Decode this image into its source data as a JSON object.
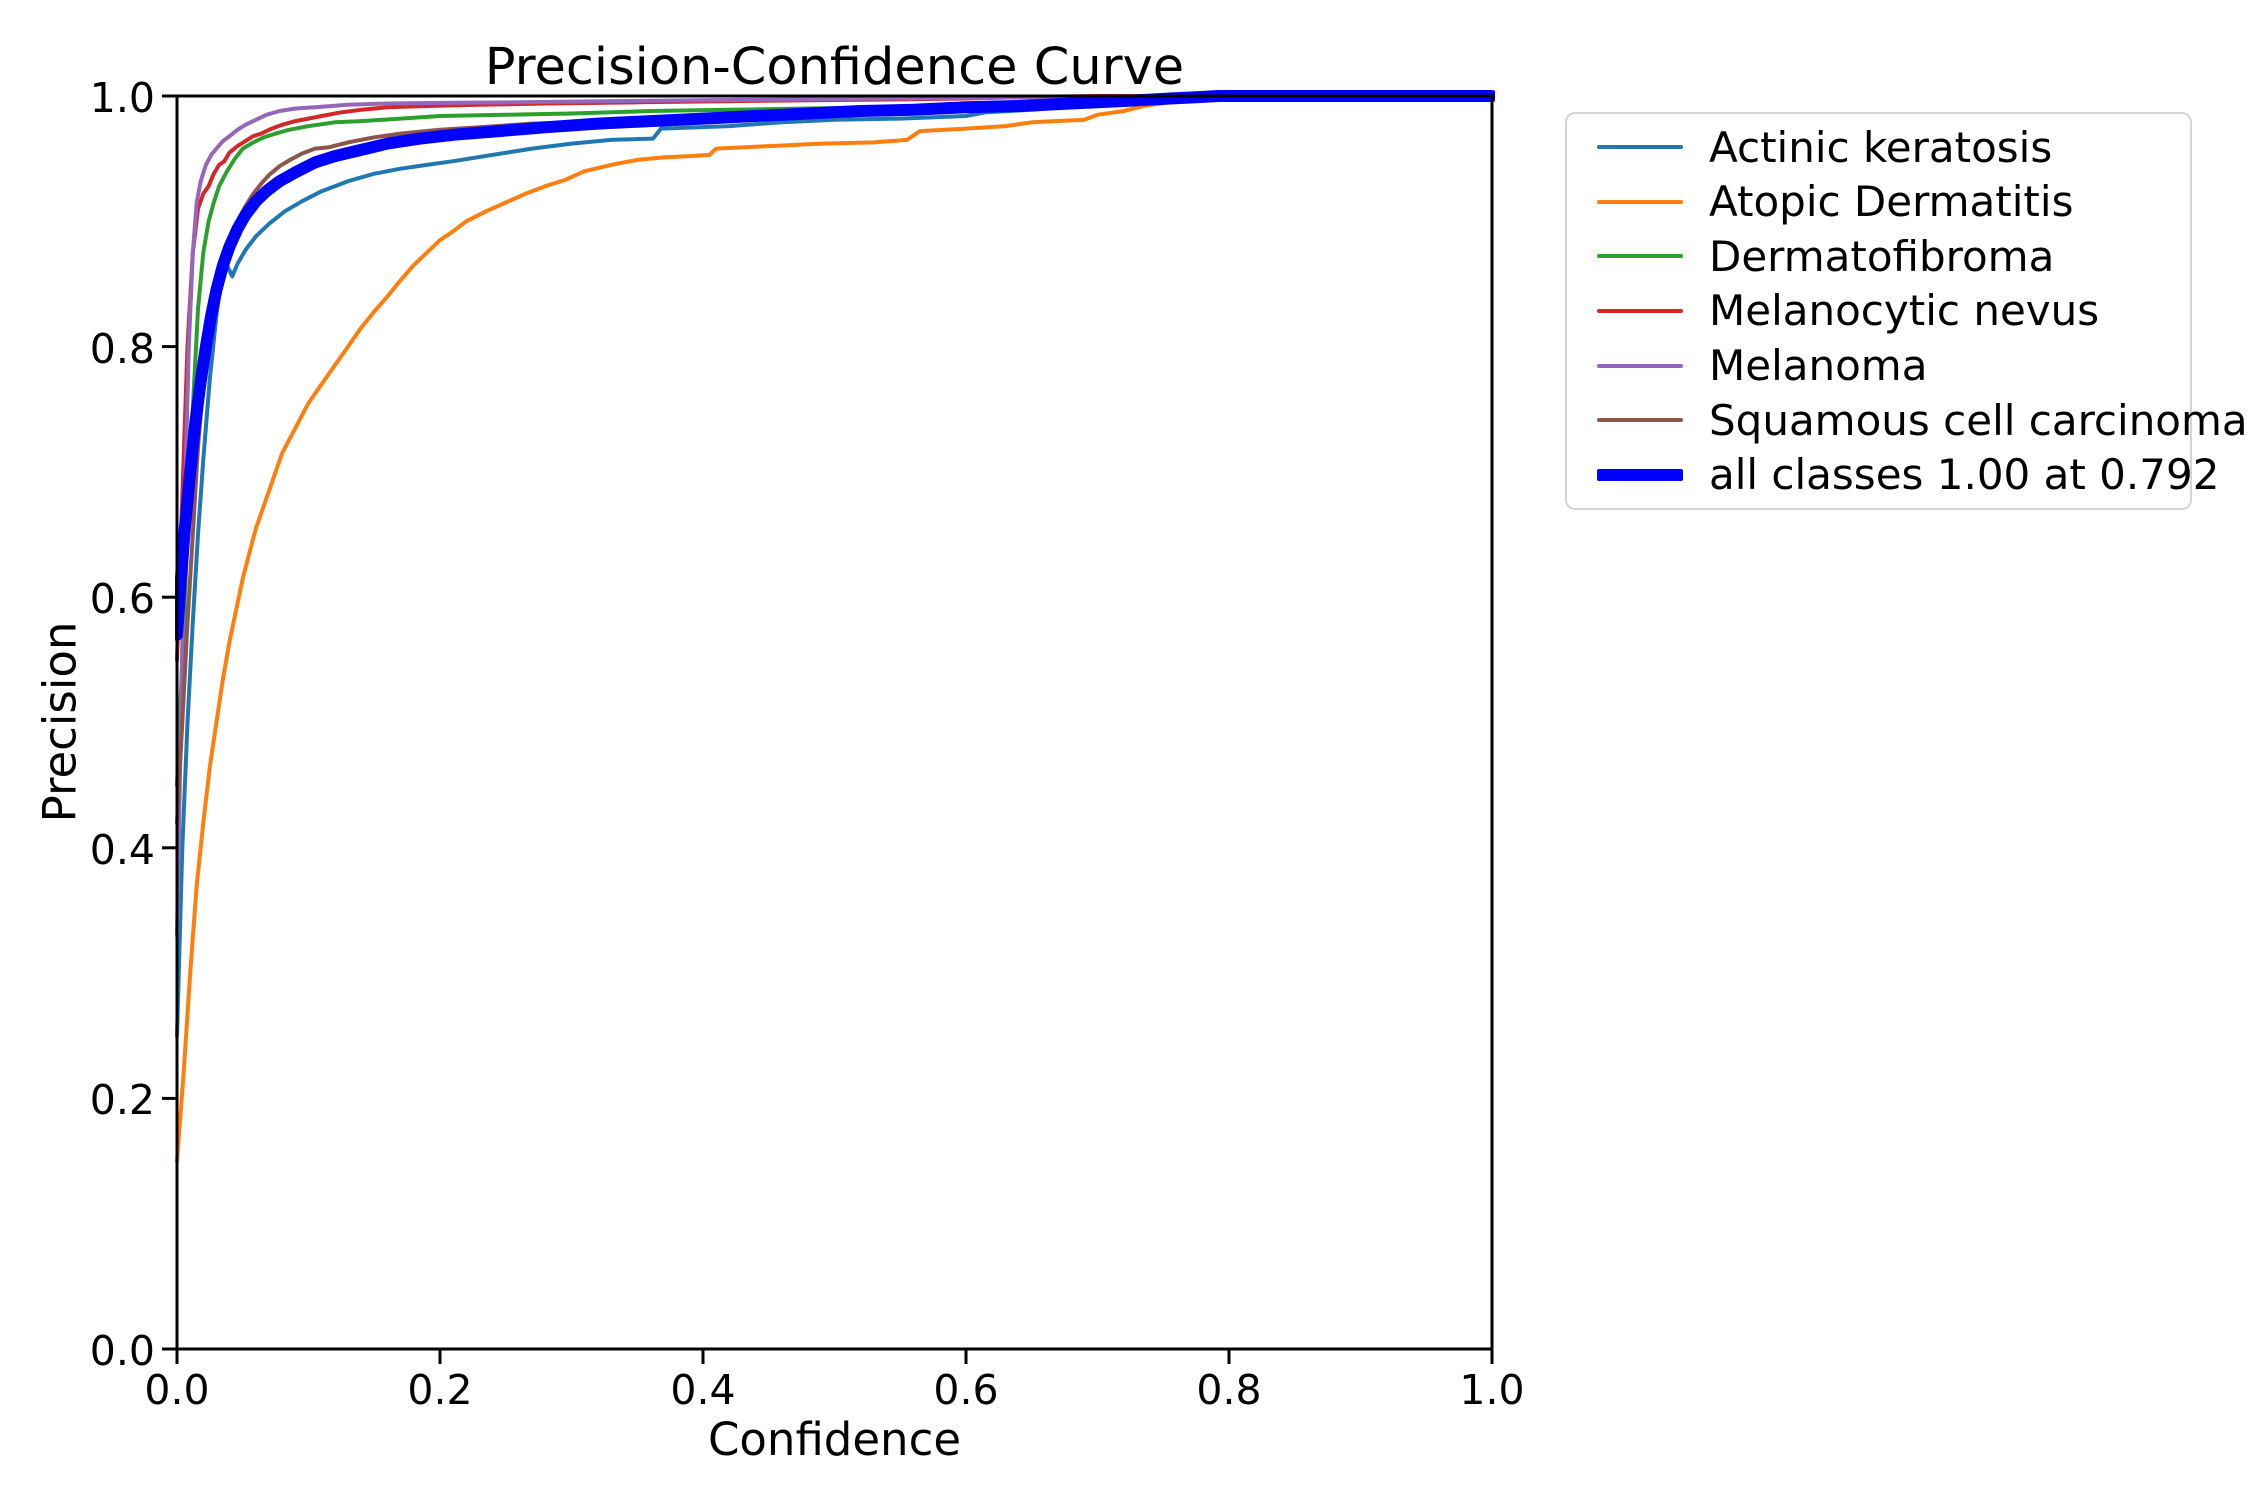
{
  "figure": {
    "background": "#ffffff",
    "text_color": "#000000",
    "spine_color": "#000000"
  },
  "chart_data": {
    "type": "line",
    "title": "Precision-Confidence Curve",
    "xlabel": "Confidence",
    "ylabel": "Precision",
    "xlim": [
      0,
      1
    ],
    "ylim": [
      0,
      1
    ],
    "xticks": [
      "0.0",
      "0.2",
      "0.4",
      "0.6",
      "0.8",
      "1.0"
    ],
    "yticks": [
      "0.0",
      "0.2",
      "0.4",
      "0.6",
      "0.8",
      "1.0"
    ],
    "grid": false,
    "legend_position": "outside-upper-right",
    "series": [
      {
        "name": "Actinic keratosis",
        "color": "#1f77b4",
        "linewidth": 4,
        "points": [
          [
            0,
            0.25
          ],
          [
            0.004,
            0.4
          ],
          [
            0.008,
            0.5
          ],
          [
            0.012,
            0.58
          ],
          [
            0.016,
            0.65
          ],
          [
            0.02,
            0.71
          ],
          [
            0.025,
            0.775
          ],
          [
            0.03,
            0.825
          ],
          [
            0.034,
            0.857
          ],
          [
            0.038,
            0.865
          ],
          [
            0.042,
            0.856
          ],
          [
            0.046,
            0.866
          ],
          [
            0.052,
            0.877
          ],
          [
            0.06,
            0.888
          ],
          [
            0.07,
            0.898
          ],
          [
            0.082,
            0.908
          ],
          [
            0.095,
            0.916
          ],
          [
            0.11,
            0.924
          ],
          [
            0.13,
            0.932
          ],
          [
            0.15,
            0.938
          ],
          [
            0.17,
            0.942
          ],
          [
            0.19,
            0.945
          ],
          [
            0.21,
            0.948
          ],
          [
            0.24,
            0.953
          ],
          [
            0.27,
            0.958
          ],
          [
            0.3,
            0.962
          ],
          [
            0.33,
            0.965
          ],
          [
            0.362,
            0.966
          ],
          [
            0.368,
            0.974
          ],
          [
            0.42,
            0.976
          ],
          [
            0.46,
            0.979
          ],
          [
            0.5,
            0.981
          ],
          [
            0.55,
            0.982
          ],
          [
            0.6,
            0.984
          ],
          [
            0.615,
            0.987
          ],
          [
            0.65,
            0.989
          ],
          [
            0.69,
            0.992
          ],
          [
            0.73,
            0.995
          ],
          [
            0.76,
            0.997
          ],
          [
            0.792,
            1.0
          ],
          [
            1.0,
            1.0
          ]
        ]
      },
      {
        "name": "Atopic Dermatitis",
        "color": "#ff7f0e",
        "linewidth": 4,
        "points": [
          [
            0,
            0.15
          ],
          [
            0.005,
            0.22
          ],
          [
            0.01,
            0.3
          ],
          [
            0.015,
            0.37
          ],
          [
            0.02,
            0.42
          ],
          [
            0.025,
            0.465
          ],
          [
            0.03,
            0.5
          ],
          [
            0.035,
            0.535
          ],
          [
            0.04,
            0.565
          ],
          [
            0.045,
            0.59
          ],
          [
            0.05,
            0.615
          ],
          [
            0.055,
            0.635
          ],
          [
            0.06,
            0.655
          ],
          [
            0.065,
            0.67
          ],
          [
            0.07,
            0.685
          ],
          [
            0.075,
            0.7
          ],
          [
            0.08,
            0.715
          ],
          [
            0.09,
            0.735
          ],
          [
            0.1,
            0.755
          ],
          [
            0.11,
            0.77
          ],
          [
            0.12,
            0.785
          ],
          [
            0.13,
            0.8
          ],
          [
            0.14,
            0.815
          ],
          [
            0.15,
            0.828
          ],
          [
            0.16,
            0.84
          ],
          [
            0.17,
            0.853
          ],
          [
            0.18,
            0.865
          ],
          [
            0.19,
            0.875
          ],
          [
            0.2,
            0.885
          ],
          [
            0.21,
            0.892
          ],
          [
            0.22,
            0.9
          ],
          [
            0.235,
            0.908
          ],
          [
            0.25,
            0.915
          ],
          [
            0.265,
            0.922
          ],
          [
            0.28,
            0.928
          ],
          [
            0.295,
            0.933
          ],
          [
            0.31,
            0.94
          ],
          [
            0.33,
            0.945
          ],
          [
            0.35,
            0.949
          ],
          [
            0.37,
            0.951
          ],
          [
            0.39,
            0.952
          ],
          [
            0.405,
            0.953
          ],
          [
            0.41,
            0.958
          ],
          [
            0.45,
            0.96
          ],
          [
            0.49,
            0.962
          ],
          [
            0.53,
            0.963
          ],
          [
            0.555,
            0.965
          ],
          [
            0.565,
            0.972
          ],
          [
            0.6,
            0.974
          ],
          [
            0.63,
            0.976
          ],
          [
            0.65,
            0.979
          ],
          [
            0.69,
            0.981
          ],
          [
            0.7,
            0.985
          ],
          [
            0.72,
            0.988
          ],
          [
            0.735,
            0.992
          ],
          [
            0.755,
            0.995
          ],
          [
            0.775,
            0.998
          ],
          [
            0.792,
            1.0
          ],
          [
            1.0,
            1.0
          ]
        ]
      },
      {
        "name": "Dermatofibroma",
        "color": "#2ca02c",
        "linewidth": 4,
        "points": [
          [
            0,
            0.45
          ],
          [
            0.004,
            0.55
          ],
          [
            0.008,
            0.65
          ],
          [
            0.012,
            0.75
          ],
          [
            0.016,
            0.83
          ],
          [
            0.02,
            0.875
          ],
          [
            0.024,
            0.9
          ],
          [
            0.028,
            0.915
          ],
          [
            0.032,
            0.928
          ],
          [
            0.038,
            0.94
          ],
          [
            0.044,
            0.95
          ],
          [
            0.05,
            0.958
          ],
          [
            0.058,
            0.963
          ],
          [
            0.066,
            0.967
          ],
          [
            0.075,
            0.97
          ],
          [
            0.085,
            0.973
          ],
          [
            0.1,
            0.976
          ],
          [
            0.12,
            0.979
          ],
          [
            0.14,
            0.98
          ],
          [
            0.17,
            0.982
          ],
          [
            0.2,
            0.984
          ],
          [
            0.25,
            0.985
          ],
          [
            0.3,
            0.986
          ],
          [
            0.36,
            0.988
          ],
          [
            0.42,
            0.989
          ],
          [
            0.48,
            0.99
          ],
          [
            0.54,
            0.991
          ],
          [
            0.6,
            0.993
          ],
          [
            0.65,
            0.994
          ],
          [
            0.7,
            0.996
          ],
          [
            0.74,
            0.998
          ],
          [
            0.77,
            1.0
          ],
          [
            1.0,
            1.0
          ]
        ]
      },
      {
        "name": "Melanocytic nevus",
        "color": "#d62728",
        "linewidth": 4,
        "points": [
          [
            0,
            0.55
          ],
          [
            0.004,
            0.68
          ],
          [
            0.008,
            0.8
          ],
          [
            0.012,
            0.875
          ],
          [
            0.016,
            0.91
          ],
          [
            0.02,
            0.922
          ],
          [
            0.024,
            0.928
          ],
          [
            0.028,
            0.938
          ],
          [
            0.032,
            0.945
          ],
          [
            0.036,
            0.948
          ],
          [
            0.04,
            0.955
          ],
          [
            0.046,
            0.96
          ],
          [
            0.052,
            0.964
          ],
          [
            0.058,
            0.968
          ],
          [
            0.064,
            0.97
          ],
          [
            0.072,
            0.974
          ],
          [
            0.08,
            0.977
          ],
          [
            0.09,
            0.98
          ],
          [
            0.1,
            0.982
          ],
          [
            0.11,
            0.984
          ],
          [
            0.125,
            0.987
          ],
          [
            0.14,
            0.989
          ],
          [
            0.16,
            0.991
          ],
          [
            0.19,
            0.992
          ],
          [
            0.23,
            0.993
          ],
          [
            0.28,
            0.994
          ],
          [
            0.35,
            0.995
          ],
          [
            0.43,
            0.996
          ],
          [
            0.52,
            0.997
          ],
          [
            0.6,
            0.998
          ],
          [
            0.66,
            0.9995
          ],
          [
            0.7,
            1.0
          ],
          [
            1.0,
            1.0
          ]
        ]
      },
      {
        "name": "Melanoma",
        "color": "#9467bd",
        "linewidth": 4,
        "points": [
          [
            0,
            0.33
          ],
          [
            0.003,
            0.5
          ],
          [
            0.006,
            0.68
          ],
          [
            0.009,
            0.8
          ],
          [
            0.012,
            0.875
          ],
          [
            0.015,
            0.915
          ],
          [
            0.018,
            0.932
          ],
          [
            0.022,
            0.945
          ],
          [
            0.026,
            0.953
          ],
          [
            0.03,
            0.958
          ],
          [
            0.035,
            0.964
          ],
          [
            0.04,
            0.968
          ],
          [
            0.046,
            0.973
          ],
          [
            0.052,
            0.977
          ],
          [
            0.06,
            0.981
          ],
          [
            0.068,
            0.985
          ],
          [
            0.078,
            0.988
          ],
          [
            0.09,
            0.99
          ],
          [
            0.105,
            0.991
          ],
          [
            0.13,
            0.993
          ],
          [
            0.16,
            0.994
          ],
          [
            0.2,
            0.9945
          ],
          [
            0.26,
            0.995
          ],
          [
            0.34,
            0.996
          ],
          [
            0.44,
            0.997
          ],
          [
            0.54,
            0.998
          ],
          [
            0.64,
            0.9988
          ],
          [
            0.7,
            0.9995
          ],
          [
            0.74,
            1.0
          ],
          [
            1.0,
            1.0
          ]
        ]
      },
      {
        "name": "Squamous cell carcinoma",
        "color": "#8c564b",
        "linewidth": 4,
        "points": [
          [
            0,
            0.42
          ],
          [
            0.004,
            0.5
          ],
          [
            0.008,
            0.58
          ],
          [
            0.012,
            0.65
          ],
          [
            0.016,
            0.72
          ],
          [
            0.02,
            0.77
          ],
          [
            0.025,
            0.815
          ],
          [
            0.03,
            0.845
          ],
          [
            0.035,
            0.868
          ],
          [
            0.04,
            0.885
          ],
          [
            0.046,
            0.9
          ],
          [
            0.052,
            0.912
          ],
          [
            0.058,
            0.922
          ],
          [
            0.064,
            0.93
          ],
          [
            0.07,
            0.937
          ],
          [
            0.078,
            0.944
          ],
          [
            0.086,
            0.949
          ],
          [
            0.095,
            0.954
          ],
          [
            0.105,
            0.958
          ],
          [
            0.115,
            0.959
          ],
          [
            0.13,
            0.963
          ],
          [
            0.15,
            0.967
          ],
          [
            0.17,
            0.97
          ],
          [
            0.2,
            0.973
          ],
          [
            0.23,
            0.975
          ],
          [
            0.27,
            0.978
          ],
          [
            0.31,
            0.979
          ],
          [
            0.36,
            0.981
          ],
          [
            0.42,
            0.984
          ],
          [
            0.48,
            0.986
          ],
          [
            0.54,
            0.989
          ],
          [
            0.6,
            0.992
          ],
          [
            0.66,
            0.994
          ],
          [
            0.71,
            0.997
          ],
          [
            0.75,
            0.998
          ],
          [
            0.79,
            1.0
          ],
          [
            1.0,
            1.0
          ]
        ]
      },
      {
        "name": "all classes 1.00 at 0.792",
        "color": "#0000ff",
        "linewidth": 12,
        "points": [
          [
            0,
            0.57
          ],
          [
            0.003,
            0.615
          ],
          [
            0.006,
            0.655
          ],
          [
            0.01,
            0.7
          ],
          [
            0.014,
            0.74
          ],
          [
            0.018,
            0.772
          ],
          [
            0.022,
            0.8
          ],
          [
            0.026,
            0.825
          ],
          [
            0.03,
            0.845
          ],
          [
            0.035,
            0.865
          ],
          [
            0.04,
            0.88
          ],
          [
            0.046,
            0.894
          ],
          [
            0.052,
            0.905
          ],
          [
            0.06,
            0.916
          ],
          [
            0.068,
            0.924
          ],
          [
            0.078,
            0.932
          ],
          [
            0.09,
            0.939
          ],
          [
            0.105,
            0.947
          ],
          [
            0.12,
            0.952
          ],
          [
            0.14,
            0.957
          ],
          [
            0.16,
            0.962
          ],
          [
            0.185,
            0.966
          ],
          [
            0.21,
            0.969
          ],
          [
            0.245,
            0.972
          ],
          [
            0.28,
            0.975
          ],
          [
            0.32,
            0.978
          ],
          [
            0.36,
            0.98
          ],
          [
            0.4,
            0.982
          ],
          [
            0.44,
            0.984
          ],
          [
            0.48,
            0.986
          ],
          [
            0.52,
            0.988
          ],
          [
            0.56,
            0.989
          ],
          [
            0.6,
            0.991
          ],
          [
            0.64,
            0.992
          ],
          [
            0.68,
            0.994
          ],
          [
            0.72,
            0.996
          ],
          [
            0.755,
            0.998
          ],
          [
            0.775,
            0.999
          ],
          [
            0.792,
            1.0
          ],
          [
            1.0,
            1.0
          ]
        ]
      }
    ]
  }
}
